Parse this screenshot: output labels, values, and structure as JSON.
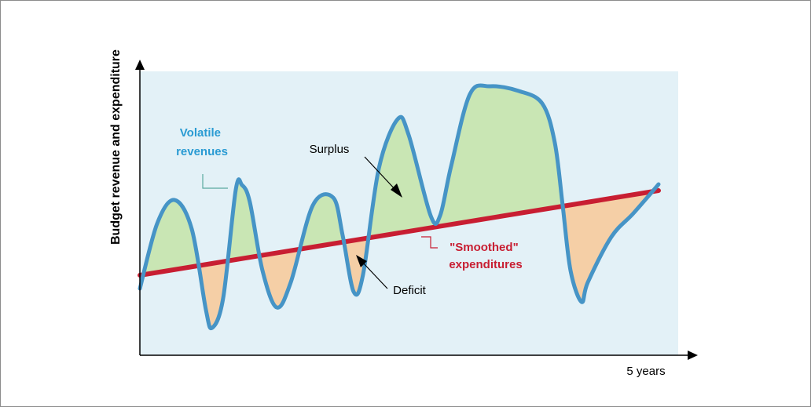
{
  "labels": {
    "y_axis": "Budget revenue and expenditure",
    "x_axis_end": "5 years",
    "volatile_revenues": [
      "Volatile",
      "revenues"
    ],
    "surplus": "Surplus",
    "deficit": "Deficit",
    "smoothed_expenditures": [
      "\"Smoothed\"",
      "expenditures"
    ]
  },
  "colors": {
    "plot_background": "#e3f1f7",
    "revenue_line": "#4694c6",
    "expenditure_line": "#c81e32",
    "surplus_fill": "#c9e6b4",
    "deficit_fill": "#f5cfa6",
    "volatile_label": "#2a9bd3",
    "smoothed_label": "#c81e32",
    "axis": "#000000",
    "frame": "#8c8c8c"
  }
}
